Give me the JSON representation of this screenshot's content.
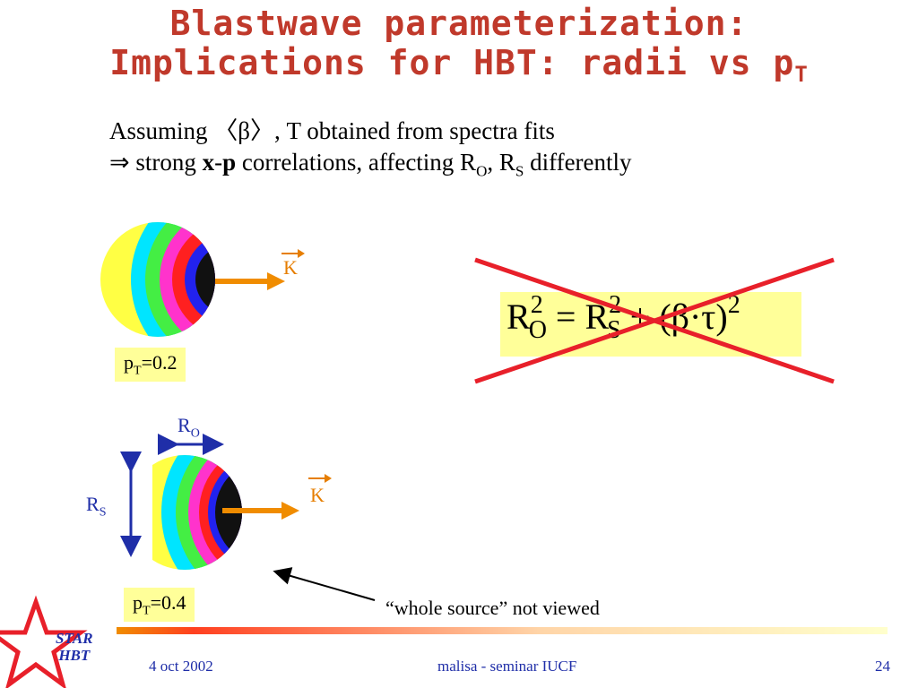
{
  "title": {
    "line1": "Blastwave parameterization:",
    "line2": "Implications for HBT: radii vs p",
    "line2_sub": "T"
  },
  "body": {
    "line1": "Assuming 〈β〉, T obtained from spectra fits",
    "line2_prefix": "⇒ strong ",
    "line2_x": "x",
    "line2_dash": "-",
    "line2_p": "p",
    "line2_mid": " correlations, affecting R",
    "line2_sub_o": "O",
    "line2_comma": ", R",
    "line2_sub_s": "S",
    "line2_end": " differently"
  },
  "top_source": {
    "pt_label_p": "p",
    "pt_label_sub": "T",
    "pt_label_val": "=0.2",
    "k_label": "K"
  },
  "bottom_source": {
    "pt_label_p": "p",
    "pt_label_sub": "T",
    "pt_label_val": "=0.4",
    "k_label": "K",
    "ro_label": "R",
    "ro_sub": "O",
    "rs_label": "R",
    "rs_sub": "S"
  },
  "formula": {
    "r1": "R",
    "sup1": "2",
    "sub1": "O",
    "eq": " = R",
    "sup2": "2",
    "sub2": "S",
    "plus": " + ",
    "paren": "(β·τ)",
    "sup3": "2"
  },
  "caption": "“whole source” not viewed",
  "footer": {
    "logo_line1": "STAR",
    "logo_line2": "HBT",
    "date": "4 oct 2002",
    "center": "malisa - seminar IUCF",
    "page": "24"
  },
  "colors": {
    "title": "#c0392b",
    "accent_orange": "#e67e00",
    "cross_red": "#e8202a",
    "blue": "#1f2ea8",
    "highlight": "#ffff99"
  }
}
